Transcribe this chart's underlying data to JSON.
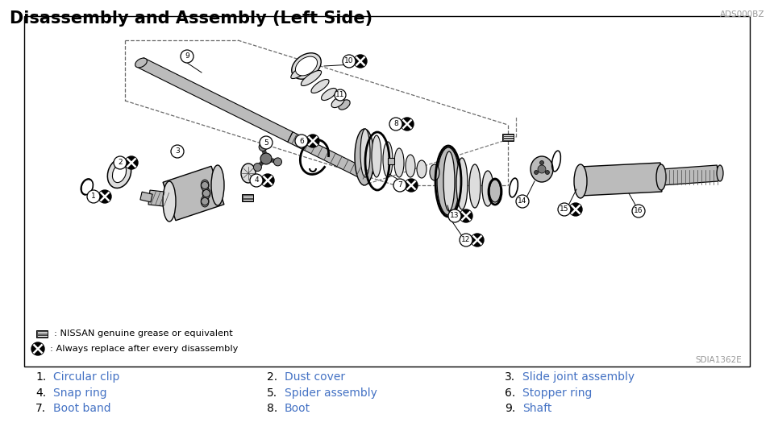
{
  "title": "Disassembly and Assembly (Left Side)",
  "title_fontsize": 15,
  "title_color": "#000000",
  "code_top_right": "ADS000BZ",
  "code_bottom_right": "SDIA1362E",
  "background_color": "#ffffff",
  "legend_grease": ": NISSAN genuine grease or equivalent",
  "legend_replace": ": Always replace after every disassembly",
  "parts_col1": [
    {
      "num": "1.",
      "name": "Circular clip"
    },
    {
      "num": "4.",
      "name": "Snap ring"
    },
    {
      "num": "7.",
      "name": "Boot band"
    }
  ],
  "parts_col2": [
    {
      "num": "2.",
      "name": "Dust cover"
    },
    {
      "num": "5.",
      "name": "Spider assembly"
    },
    {
      "num": "8.",
      "name": "Boot"
    }
  ],
  "parts_col3": [
    {
      "num": "3.",
      "name": "Slide joint assembly"
    },
    {
      "num": "6.",
      "name": "Stopper ring"
    },
    {
      "num": "9.",
      "name": "Shaft"
    }
  ],
  "parts_color": "#4472c4",
  "parts_num_color": "#000000",
  "part_fontsize": 10
}
